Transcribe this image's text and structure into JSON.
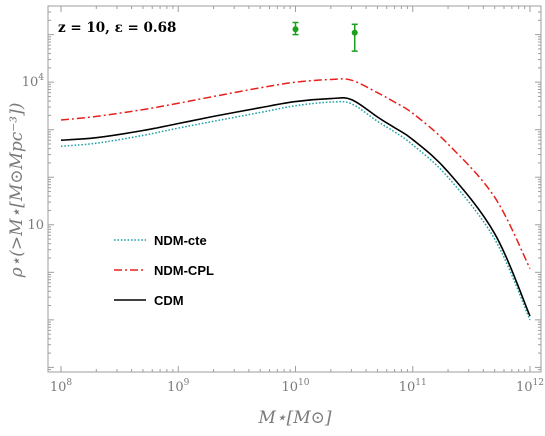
{
  "chart_data": {
    "type": "line",
    "annotation": "z = 10, ε = 0.68",
    "xlabel": "M⋆[M⊙]",
    "ylabel": "ρ⋆(>M⋆[M⊙Mpc⁻³])",
    "xscale": "log",
    "yscale": "log",
    "xlim": [
      100000000.0,
      1000000000000.0
    ],
    "ylim": [
      0.008,
      400000
    ],
    "x_ticks": [
      {
        "value": 100000000.0,
        "base": "10",
        "exp": "8"
      },
      {
        "value": 1000000000.0,
        "base": "10",
        "exp": "9"
      },
      {
        "value": 10000000000.0,
        "base": "10",
        "exp": "10"
      },
      {
        "value": 100000000000.0,
        "base": "10",
        "exp": "11"
      },
      {
        "value": 1000000000000.0,
        "base": "10",
        "exp": "12"
      }
    ],
    "y_ticks": [
      {
        "value": 10,
        "base": "10",
        "exp": ""
      },
      {
        "value": 10000,
        "base": "10",
        "exp": "4"
      }
    ],
    "grid": false,
    "legend_position": "lower-left",
    "series": [
      {
        "name": "NDM-cte",
        "color": "#1fa3a8",
        "style": "dotted",
        "x": [
          100000000.0,
          200000000.0,
          500000000.0,
          1000000000.0,
          2000000000.0,
          5000000000.0,
          10000000000.0,
          20000000000.0,
          30000000000.0,
          50000000000.0,
          70000000000.0,
          100000000000.0,
          200000000000.0,
          500000000000.0,
          1000000000000.0
        ],
        "y": [
          450,
          520,
          760,
          1080,
          1500,
          2300,
          3200,
          3800,
          3500,
          1500,
          900,
          480,
          100,
          5,
          0.1
        ]
      },
      {
        "name": "NDM-CPL",
        "color": "#e8201c",
        "style": "dashdot",
        "x": [
          100000000.0,
          200000000.0,
          500000000.0,
          1000000000.0,
          2000000000.0,
          5000000000.0,
          10000000000.0,
          20000000000.0,
          30000000000.0,
          50000000000.0,
          70000000000.0,
          100000000000.0,
          200000000000.0,
          500000000000.0,
          1000000000000.0
        ],
        "y": [
          1600,
          1900,
          2650,
          3600,
          5000,
          7600,
          10000,
          11400,
          11000,
          6000,
          3800,
          2200,
          500,
          38,
          1.2
        ]
      },
      {
        "name": "CDM",
        "color": "#000000",
        "style": "solid",
        "x": [
          100000000.0,
          200000000.0,
          500000000.0,
          1000000000.0,
          2000000000.0,
          5000000000.0,
          10000000000.0,
          20000000000.0,
          30000000000.0,
          50000000000.0,
          70000000000.0,
          100000000000.0,
          200000000000.0,
          500000000000.0,
          1000000000000.0
        ],
        "y": [
          600,
          680,
          960,
          1350,
          1900,
          2900,
          3900,
          4500,
          4300,
          1850,
          1100,
          620,
          130,
          6.5,
          0.12
        ]
      }
    ],
    "observations": {
      "color": "#1aa01a",
      "points": [
        {
          "x": 10000000000.0,
          "y": 130000,
          "ylow": 100000,
          "yhigh": 180000
        },
        {
          "x": 32000000000.0,
          "y": 110000,
          "ylow": 45000,
          "yhigh": 165000
        }
      ]
    }
  }
}
